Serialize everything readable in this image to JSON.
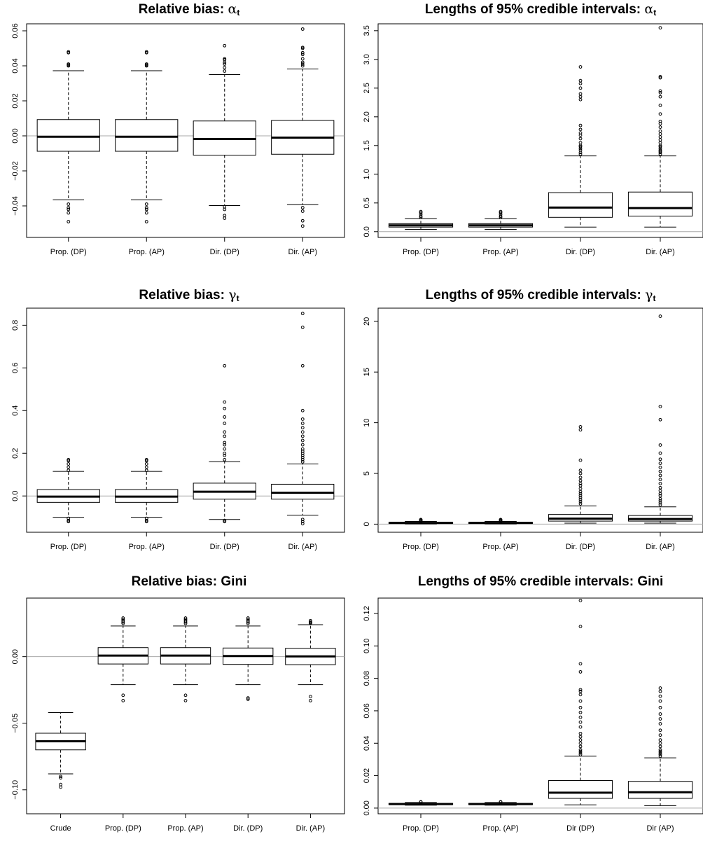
{
  "chart_data": [
    {
      "type": "boxplot",
      "title_main": "Relative bias: ",
      "title_symbol": "α",
      "title_sub": "t",
      "categories": [
        "Prop. (DP)",
        "Prop. (AP)",
        "Dir.  (DP)",
        "Dir. (AP)"
      ],
      "ylim": [
        -0.058,
        0.064
      ],
      "yticks": [
        -0.04,
        -0.02,
        0.0,
        0.02,
        0.04,
        0.06
      ],
      "ytick_labels": [
        "−0.04",
        "−0.02",
        "0.00",
        "0.02",
        "0.04",
        "0.06"
      ],
      "hline": 0,
      "boxes": [
        {
          "whisker_low": -0.0365,
          "q1": -0.0088,
          "median": -0.0005,
          "q3": 0.0093,
          "whisker_high": 0.0372,
          "outliers": [
            0.0475,
            0.048,
            0.0405,
            0.04,
            0.041,
            -0.039,
            -0.041,
            -0.042,
            -0.044,
            -0.049
          ]
        },
        {
          "whisker_low": -0.0365,
          "q1": -0.0088,
          "median": -0.0005,
          "q3": 0.0093,
          "whisker_high": 0.0372,
          "outliers": [
            0.0475,
            0.048,
            0.0405,
            0.04,
            0.041,
            -0.039,
            -0.041,
            -0.042,
            -0.044,
            -0.049
          ]
        },
        {
          "whisker_low": -0.0398,
          "q1": -0.011,
          "median": -0.0018,
          "q3": 0.0085,
          "whisker_high": 0.035,
          "outliers": [
            0.0515,
            0.0435,
            0.042,
            0.044,
            0.041,
            0.039,
            0.037,
            -0.0405,
            -0.042,
            -0.0455,
            -0.047
          ]
        },
        {
          "whisker_low": -0.0393,
          "q1": -0.0105,
          "median": -0.001,
          "q3": 0.0088,
          "whisker_high": 0.0382,
          "outliers": [
            0.061,
            0.0505,
            0.05,
            0.0475,
            0.0465,
            0.044,
            0.042,
            0.041,
            0.04,
            -0.041,
            -0.043,
            -0.0485,
            -0.0515
          ]
        }
      ]
    },
    {
      "type": "boxplot",
      "title_main": "Lengths of 95% credible intervals: ",
      "title_symbol": "α",
      "title_sub": "t",
      "categories": [
        "Prop. (DP)",
        "Prop. (AP)",
        "Dir.  (DP)",
        "Dir. (AP)"
      ],
      "ylim": [
        -0.1,
        3.62
      ],
      "yticks": [
        0,
        0.5,
        1.0,
        1.5,
        2.0,
        2.5,
        3.0,
        3.5
      ],
      "ytick_labels": [
        "0.0",
        "0.5",
        "1.0",
        "1.5",
        "2.0",
        "2.5",
        "3.0",
        "3.5"
      ],
      "hline": 0,
      "boxes": [
        {
          "whisker_low": 0.04,
          "q1": 0.08,
          "median": 0.11,
          "q3": 0.14,
          "whisker_high": 0.225,
          "outliers": [
            0.25,
            0.27,
            0.3,
            0.33,
            0.35
          ]
        },
        {
          "whisker_low": 0.04,
          "q1": 0.08,
          "median": 0.11,
          "q3": 0.14,
          "whisker_high": 0.225,
          "outliers": [
            0.25,
            0.27,
            0.3,
            0.33,
            0.35
          ]
        },
        {
          "whisker_low": 0.08,
          "q1": 0.25,
          "median": 0.42,
          "q3": 0.68,
          "whisker_high": 1.32,
          "outliers": [
            1.35,
            1.38,
            1.42,
            1.45,
            1.48,
            1.5,
            1.55,
            1.62,
            1.68,
            1.72,
            1.78,
            1.85,
            2.3,
            2.35,
            2.4,
            2.5,
            2.58,
            2.63,
            2.87
          ]
        },
        {
          "whisker_low": 0.08,
          "q1": 0.27,
          "median": 0.41,
          "q3": 0.69,
          "whisker_high": 1.32,
          "outliers": [
            1.35,
            1.38,
            1.4,
            1.42,
            1.45,
            1.48,
            1.5,
            1.55,
            1.6,
            1.65,
            1.7,
            1.75,
            1.82,
            1.88,
            1.92,
            2.05,
            2.2,
            2.35,
            2.42,
            2.45,
            2.68,
            2.7,
            3.55
          ]
        }
      ]
    },
    {
      "type": "boxplot",
      "title_main": "Relative bias: ",
      "title_symbol": "γ",
      "title_sub": "t",
      "categories": [
        "Prop. (DP)",
        "Prop. (AP)",
        "Dir.  (DP)",
        "Dir. (AP)"
      ],
      "ylim": [
        -0.17,
        0.88
      ],
      "yticks": [
        0.0,
        0.2,
        0.4,
        0.6,
        0.8
      ],
      "ytick_labels": [
        "0.0",
        "0.2",
        "0.4",
        "0.6",
        "0.8"
      ],
      "hline": 0,
      "boxes": [
        {
          "whisker_low": -0.1,
          "q1": -0.03,
          "median": -0.003,
          "q3": 0.03,
          "whisker_high": 0.115,
          "outliers": [
            0.12,
            0.135,
            0.15,
            0.165,
            0.17,
            -0.105,
            -0.115,
            -0.12
          ]
        },
        {
          "whisker_low": -0.1,
          "q1": -0.03,
          "median": -0.003,
          "q3": 0.03,
          "whisker_high": 0.115,
          "outliers": [
            0.12,
            0.135,
            0.15,
            0.165,
            0.17,
            -0.105,
            -0.115,
            -0.12
          ]
        },
        {
          "whisker_low": -0.11,
          "q1": -0.015,
          "median": 0.02,
          "q3": 0.06,
          "whisker_high": 0.16,
          "outliers": [
            0.17,
            0.19,
            0.2,
            0.22,
            0.24,
            0.25,
            0.28,
            0.3,
            0.34,
            0.37,
            0.41,
            0.44,
            0.61,
            -0.115,
            -0.12
          ]
        },
        {
          "whisker_low": -0.09,
          "q1": -0.015,
          "median": 0.015,
          "q3": 0.055,
          "whisker_high": 0.15,
          "outliers": [
            0.16,
            0.17,
            0.18,
            0.19,
            0.2,
            0.21,
            0.22,
            0.24,
            0.26,
            0.28,
            0.3,
            0.32,
            0.34,
            0.36,
            0.4,
            0.61,
            0.79,
            0.855,
            -0.11,
            -0.12,
            -0.13
          ]
        }
      ]
    },
    {
      "type": "boxplot",
      "title_main": "Lengths of 95% credible intervals: ",
      "title_symbol": "γ",
      "title_sub": "t",
      "categories": [
        "Prop. (DP)",
        "Prop. (AP)",
        "Dir.  (DP)",
        "Dir. (AP)"
      ],
      "ylim": [
        -0.8,
        21.3
      ],
      "yticks": [
        0,
        5,
        10,
        15,
        20
      ],
      "ytick_labels": [
        "0",
        "5",
        "10",
        "15",
        "20"
      ],
      "hline": 0,
      "boxes": [
        {
          "whisker_low": 0.02,
          "q1": 0.07,
          "median": 0.12,
          "q3": 0.17,
          "whisker_high": 0.27,
          "outliers": [
            0.3,
            0.35,
            0.4,
            0.45
          ]
        },
        {
          "whisker_low": 0.02,
          "q1": 0.07,
          "median": 0.12,
          "q3": 0.17,
          "whisker_high": 0.27,
          "outliers": [
            0.3,
            0.35,
            0.4,
            0.45
          ]
        },
        {
          "whisker_low": 0.1,
          "q1": 0.3,
          "median": 0.55,
          "q3": 0.95,
          "whisker_high": 1.8,
          "outliers": [
            2.0,
            2.2,
            2.4,
            2.6,
            2.8,
            3.0,
            3.2,
            3.5,
            3.8,
            4.0,
            4.3,
            4.6,
            5.0,
            5.3,
            6.3,
            9.3,
            9.6
          ]
        },
        {
          "whisker_low": 0.1,
          "q1": 0.3,
          "median": 0.5,
          "q3": 0.85,
          "whisker_high": 1.7,
          "outliers": [
            1.9,
            2.1,
            2.3,
            2.5,
            2.8,
            3.0,
            3.3,
            3.6,
            4.0,
            4.4,
            4.8,
            5.2,
            5.6,
            6.0,
            6.4,
            7.0,
            7.8,
            10.3,
            11.6,
            20.5
          ]
        }
      ]
    },
    {
      "type": "boxplot",
      "title_main": "Relative bias: Gini",
      "title_symbol": "",
      "title_sub": "",
      "categories": [
        "Crude",
        "Prop. (DP)",
        "Prop. (AP)",
        "Dir.  (DP)",
        "Dir. (AP)"
      ],
      "ylim": [
        -0.118,
        0.044
      ],
      "yticks": [
        -0.1,
        -0.05,
        0.0
      ],
      "ytick_labels": [
        "−0.10",
        "−0.05",
        "0.00"
      ],
      "hline": 0,
      "boxes": [
        {
          "whisker_low": -0.088,
          "q1": -0.07,
          "median": -0.0635,
          "q3": -0.0575,
          "whisker_high": -0.042,
          "outliers": [
            -0.09,
            -0.091,
            -0.096,
            -0.098
          ]
        },
        {
          "whisker_low": -0.021,
          "q1": -0.0055,
          "median": 0.0008,
          "q3": 0.0068,
          "whisker_high": 0.023,
          "outliers": [
            0.025,
            0.026,
            0.027,
            0.028,
            0.029,
            -0.029,
            -0.033
          ]
        },
        {
          "whisker_low": -0.021,
          "q1": -0.0055,
          "median": 0.0008,
          "q3": 0.0068,
          "whisker_high": 0.023,
          "outliers": [
            0.025,
            0.026,
            0.027,
            0.028,
            0.029,
            -0.029,
            -0.033
          ]
        },
        {
          "whisker_low": -0.021,
          "q1": -0.0058,
          "median": 0.0005,
          "q3": 0.0065,
          "whisker_high": 0.023,
          "outliers": [
            0.025,
            0.026,
            0.027,
            0.028,
            0.029,
            -0.031,
            -0.032
          ]
        },
        {
          "whisker_low": -0.021,
          "q1": -0.006,
          "median": 0.0002,
          "q3": 0.0063,
          "whisker_high": 0.024,
          "outliers": [
            0.025,
            0.0255,
            0.026,
            0.027,
            -0.03,
            -0.033
          ]
        }
      ]
    },
    {
      "type": "boxplot",
      "title_main": "Lengths of 95% credible intervals: Gini",
      "title_symbol": "",
      "title_sub": "",
      "categories": [
        "Prop. (DP)",
        "Prop. (AP)",
        "Dir (DP)",
        "Dir (AP)"
      ],
      "ylim": [
        -0.0035,
        0.1295
      ],
      "yticks": [
        0.0,
        0.02,
        0.04,
        0.06,
        0.08,
        0.1,
        0.12
      ],
      "ytick_labels": [
        "0.00",
        "0.02",
        "0.04",
        "0.06",
        "0.08",
        "0.10",
        "0.12"
      ],
      "hline": 0,
      "boxes": [
        {
          "whisker_low": 0.0018,
          "q1": 0.0022,
          "median": 0.0025,
          "q3": 0.0029,
          "whisker_high": 0.0035,
          "outliers": [
            0.0037,
            0.0039
          ]
        },
        {
          "whisker_low": 0.0018,
          "q1": 0.0022,
          "median": 0.0025,
          "q3": 0.0029,
          "whisker_high": 0.0035,
          "outliers": [
            0.0037,
            0.0039
          ]
        },
        {
          "whisker_low": 0.002,
          "q1": 0.006,
          "median": 0.0095,
          "q3": 0.017,
          "whisker_high": 0.032,
          "outliers": [
            0.033,
            0.034,
            0.035,
            0.036,
            0.038,
            0.04,
            0.042,
            0.044,
            0.046,
            0.05,
            0.053,
            0.056,
            0.059,
            0.062,
            0.066,
            0.07,
            0.072,
            0.073,
            0.084,
            0.089,
            0.112,
            0.128
          ]
        },
        {
          "whisker_low": 0.0015,
          "q1": 0.006,
          "median": 0.0098,
          "q3": 0.0165,
          "whisker_high": 0.031,
          "outliers": [
            0.032,
            0.033,
            0.034,
            0.035,
            0.036,
            0.038,
            0.04,
            0.042,
            0.045,
            0.048,
            0.052,
            0.055,
            0.058,
            0.062,
            0.066,
            0.069,
            0.072,
            0.074
          ]
        }
      ]
    }
  ]
}
